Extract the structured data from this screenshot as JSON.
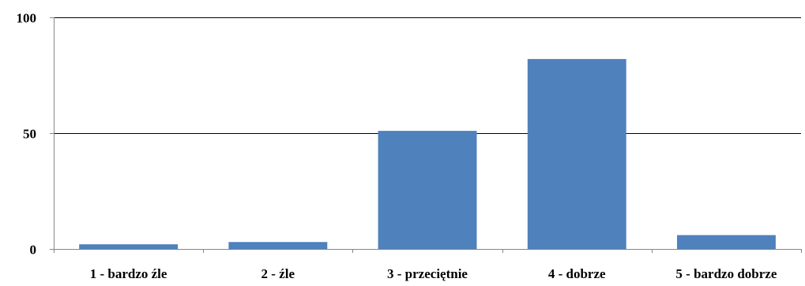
{
  "chart_data": {
    "type": "bar",
    "title": "",
    "xlabel": "",
    "ylabel": "",
    "categories": [
      "1 - bardzo źle",
      "2 - źle",
      "3 - przeciętnie",
      "4 - dobrze",
      "5 - bardzo dobrze"
    ],
    "values": [
      2,
      3,
      51,
      82,
      6
    ],
    "ylim": [
      0,
      100
    ],
    "yticks": [
      0,
      50,
      100
    ],
    "ytick_labels": [
      "0",
      "50",
      "100"
    ],
    "grid": true,
    "legend": "none",
    "bar_color": "#4f81bd",
    "gridline_color": "#000000",
    "axis_color": "#868686"
  }
}
